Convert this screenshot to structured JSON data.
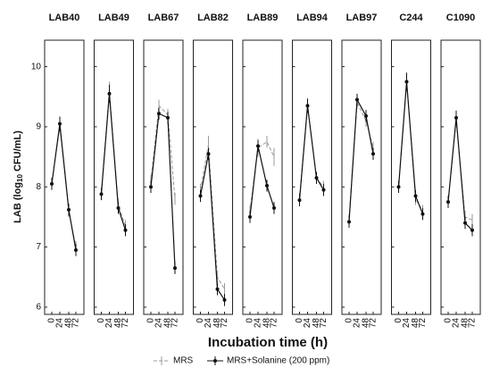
{
  "chart_data": {
    "type": "line",
    "ylabel": [
      "LAB (log",
      "10",
      " CFU/mL)"
    ],
    "xlabel": "Incubation time (h)",
    "categories": [
      "0",
      "24",
      "48",
      "72"
    ],
    "ylim": [
      5.88,
      10.44
    ],
    "yticks": [
      6,
      7,
      8,
      9,
      10
    ],
    "series_styles": [
      {
        "name": "MRS",
        "color": "#999999",
        "dashed": true
      },
      {
        "name": "MRS+Solanine (200 ppm)",
        "color": "#111111",
        "dashed": false
      }
    ],
    "panels": [
      {
        "title": "LAB40",
        "series": [
          {
            "values": [
              8.05,
              9.0,
              7.6,
              7.0
            ],
            "errors": [
              0.1,
              0.1,
              0.1,
              0.1
            ]
          },
          {
            "values": [
              8.05,
              9.05,
              7.62,
              6.95
            ],
            "errors": [
              0.1,
              0.12,
              0.1,
              0.1
            ]
          }
        ]
      },
      {
        "title": "LAB49",
        "series": [
          {
            "values": [
              7.9,
              9.6,
              7.7,
              7.35
            ],
            "errors": [
              0.1,
              0.15,
              0.1,
              0.1
            ]
          },
          {
            "values": [
              7.88,
              9.55,
              7.65,
              7.28
            ],
            "errors": [
              0.1,
              0.15,
              0.1,
              0.1
            ]
          }
        ]
      },
      {
        "title": "LAB67",
        "series": [
          {
            "values": [
              8.1,
              9.35,
              9.2,
              7.8
            ],
            "errors": [
              0.1,
              0.1,
              0.1,
              0.1
            ]
          },
          {
            "values": [
              8.0,
              9.22,
              9.15,
              6.65
            ],
            "errors": [
              0.1,
              0.1,
              0.1,
              0.1
            ]
          }
        ]
      },
      {
        "title": "LAB82",
        "series": [
          {
            "values": [
              7.95,
              8.7,
              6.5,
              6.3
            ],
            "errors": [
              0.1,
              0.15,
              0.1,
              0.1
            ]
          },
          {
            "values": [
              7.85,
              8.55,
              6.3,
              6.12
            ],
            "errors": [
              0.1,
              0.1,
              0.1,
              0.1
            ]
          }
        ]
      },
      {
        "title": "LAB89",
        "series": [
          {
            "values": [
              7.6,
              8.65,
              8.75,
              8.5
            ],
            "errors": [
              0.1,
              0.15,
              0.1,
              0.15
            ]
          },
          {
            "values": [
              7.5,
              8.68,
              8.02,
              7.65
            ],
            "errors": [
              0.1,
              0.1,
              0.1,
              0.1
            ]
          }
        ]
      },
      {
        "title": "LAB94",
        "series": [
          {
            "values": [
              7.8,
              9.35,
              8.15,
              8.0
            ],
            "errors": [
              0.1,
              0.1,
              0.1,
              0.1
            ]
          },
          {
            "values": [
              7.78,
              9.35,
              8.15,
              7.95
            ],
            "errors": [
              0.1,
              0.12,
              0.1,
              0.1
            ]
          }
        ]
      },
      {
        "title": "LAB97",
        "series": [
          {
            "values": [
              7.45,
              9.4,
              9.1,
              8.65
            ],
            "errors": [
              0.1,
              0.1,
              0.1,
              0.1
            ]
          },
          {
            "values": [
              7.42,
              9.45,
              9.18,
              8.55
            ],
            "errors": [
              0.1,
              0.1,
              0.1,
              0.1
            ]
          }
        ]
      },
      {
        "title": "C244",
        "series": [
          {
            "values": [
              8.0,
              9.75,
              7.8,
              7.6
            ],
            "errors": [
              0.1,
              0.15,
              0.1,
              0.1
            ]
          },
          {
            "values": [
              8.0,
              9.75,
              7.85,
              7.55
            ],
            "errors": [
              0.1,
              0.15,
              0.1,
              0.1
            ]
          }
        ]
      },
      {
        "title": "C1090",
        "series": [
          {
            "values": [
              7.75,
              9.1,
              7.5,
              7.45
            ],
            "errors": [
              0.1,
              0.1,
              0.1,
              0.1
            ]
          },
          {
            "values": [
              7.75,
              9.15,
              7.4,
              7.28
            ],
            "errors": [
              0.1,
              0.12,
              0.1,
              0.1
            ]
          }
        ]
      }
    ]
  }
}
